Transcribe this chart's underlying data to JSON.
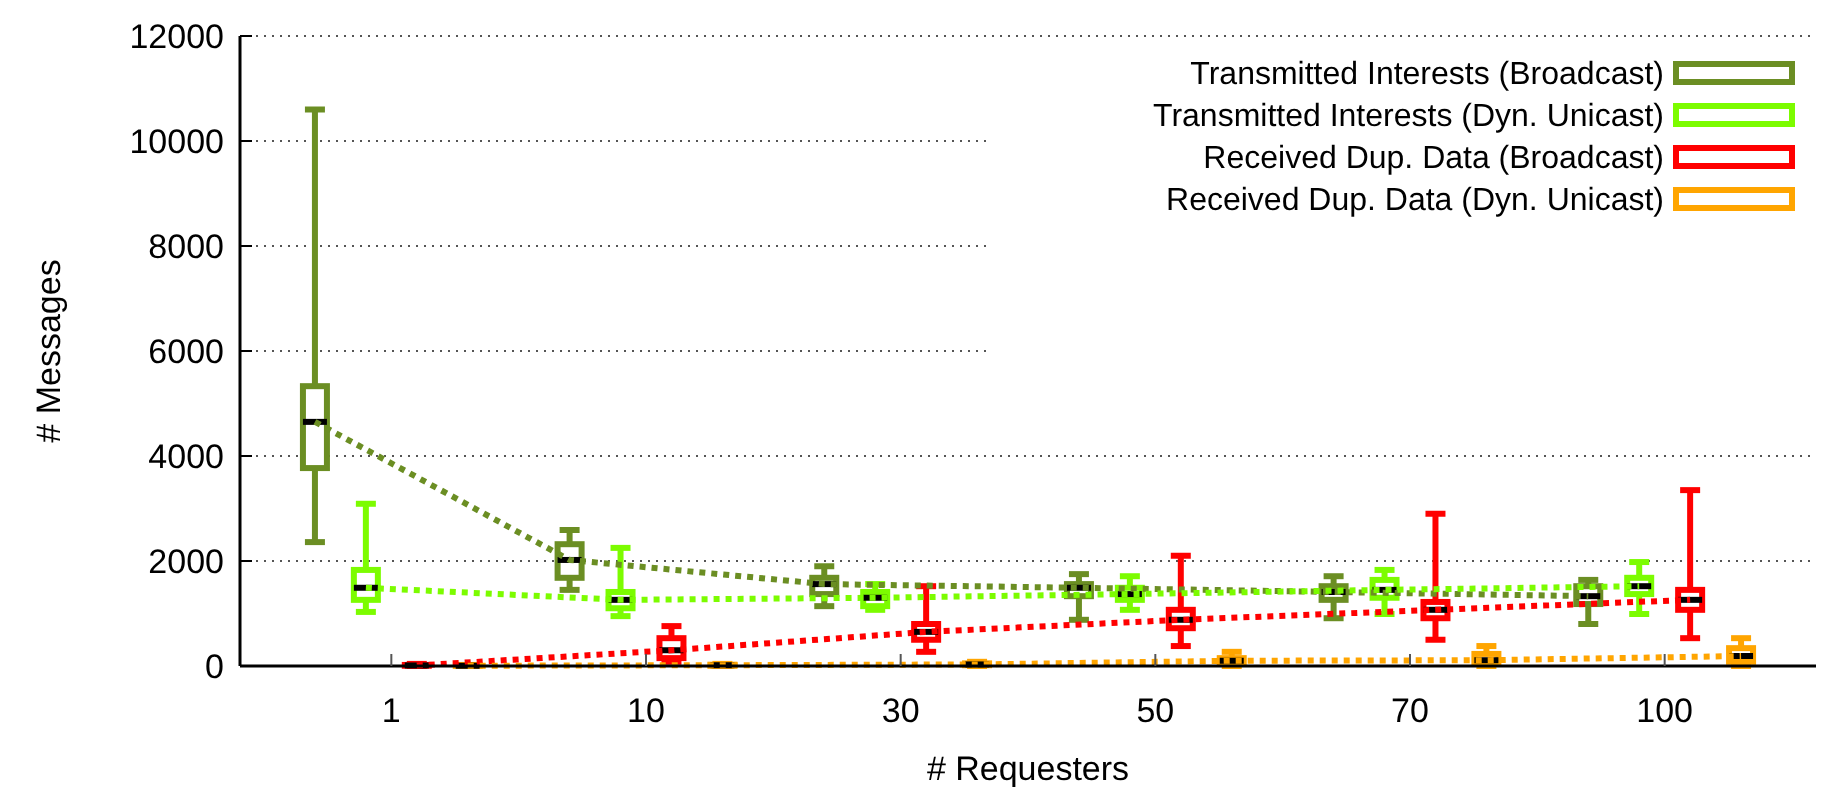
{
  "chart_data": {
    "type": "box",
    "xlabel": "# Requesters",
    "ylabel": "# Messages",
    "categories": [
      "1",
      "10",
      "30",
      "50",
      "70",
      "100"
    ],
    "ylim": [
      0,
      12000
    ],
    "yticks": [
      0,
      2000,
      4000,
      6000,
      8000,
      10000,
      12000
    ],
    "grid": "y",
    "legend": "top right",
    "series": [
      {
        "name": "Transmitted Interests (Broadcast)",
        "color": "#6b8e23",
        "boxes": [
          {
            "low": 2360,
            "q1": 3770,
            "median": 4650,
            "q3": 5330,
            "high": 10600
          },
          {
            "low": 1450,
            "q1": 1680,
            "median": 2020,
            "q3": 2320,
            "high": 2590
          },
          {
            "low": 1140,
            "q1": 1370,
            "median": 1560,
            "q3": 1680,
            "high": 1900
          },
          {
            "low": 880,
            "q1": 1330,
            "median": 1490,
            "q3": 1560,
            "high": 1750
          },
          {
            "low": 910,
            "q1": 1260,
            "median": 1410,
            "q3": 1520,
            "high": 1710
          },
          {
            "low": 800,
            "q1": 1180,
            "median": 1330,
            "q3": 1520,
            "high": 1640
          }
        ]
      },
      {
        "name": "Transmitted Interests (Dyn. Unicast)",
        "color": "#7cfc00",
        "boxes": [
          {
            "low": 1030,
            "q1": 1260,
            "median": 1490,
            "q3": 1830,
            "high": 3090
          },
          {
            "low": 950,
            "q1": 1100,
            "median": 1260,
            "q3": 1410,
            "high": 2250
          },
          {
            "low": 1070,
            "q1": 1140,
            "median": 1300,
            "q3": 1410,
            "high": 1560
          },
          {
            "low": 1070,
            "q1": 1260,
            "median": 1370,
            "q3": 1490,
            "high": 1710
          },
          {
            "low": 990,
            "q1": 1300,
            "median": 1450,
            "q3": 1640,
            "high": 1830
          },
          {
            "low": 990,
            "q1": 1370,
            "median": 1520,
            "q3": 1680,
            "high": 1980
          }
        ]
      },
      {
        "name": "Received Dup. Data (Broadcast)",
        "color": "#ff0000",
        "boxes": [
          {
            "low": 0,
            "q1": 5,
            "median": 10,
            "q3": 20,
            "high": 40
          },
          {
            "low": 80,
            "q1": 150,
            "median": 300,
            "q3": 530,
            "high": 760
          },
          {
            "low": 270,
            "q1": 500,
            "median": 650,
            "q3": 800,
            "high": 1520
          },
          {
            "low": 380,
            "q1": 720,
            "median": 880,
            "q3": 1070,
            "high": 2100
          },
          {
            "low": 500,
            "q1": 910,
            "median": 1070,
            "q3": 1220,
            "high": 2900
          },
          {
            "low": 530,
            "q1": 1070,
            "median": 1260,
            "q3": 1450,
            "high": 3350
          }
        ]
      },
      {
        "name": "Received Dup. Data (Dyn. Unicast)",
        "color": "#ffa500",
        "boxes": [
          {
            "low": 0,
            "q1": 2,
            "median": 5,
            "q3": 10,
            "high": 20
          },
          {
            "low": 0,
            "q1": 5,
            "median": 15,
            "q3": 25,
            "high": 40
          },
          {
            "low": 0,
            "q1": 15,
            "median": 30,
            "q3": 50,
            "high": 80
          },
          {
            "low": 0,
            "q1": 40,
            "median": 100,
            "q3": 150,
            "high": 270
          },
          {
            "low": 0,
            "q1": 60,
            "median": 110,
            "q3": 230,
            "high": 380
          },
          {
            "low": 0,
            "q1": 80,
            "median": 190,
            "q3": 340,
            "high": 530
          }
        ]
      },
      {
        "type": "line",
        "color": "#6b8e23",
        "line_style": "dotted",
        "values": [
          4650,
          2020,
          1560,
          1490,
          1410,
          1330
        ]
      },
      {
        "type": "line",
        "color": "#7cfc00",
        "line_style": "dotted",
        "values": [
          1490,
          1260,
          1300,
          1370,
          1450,
          1520
        ]
      },
      {
        "type": "line",
        "color": "#ff0000",
        "line_style": "dotted",
        "values": [
          10,
          300,
          650,
          880,
          1070,
          1260
        ]
      },
      {
        "type": "line",
        "color": "#ffa500",
        "line_style": "dotted",
        "values": [
          5,
          15,
          30,
          100,
          110,
          190
        ]
      }
    ]
  }
}
